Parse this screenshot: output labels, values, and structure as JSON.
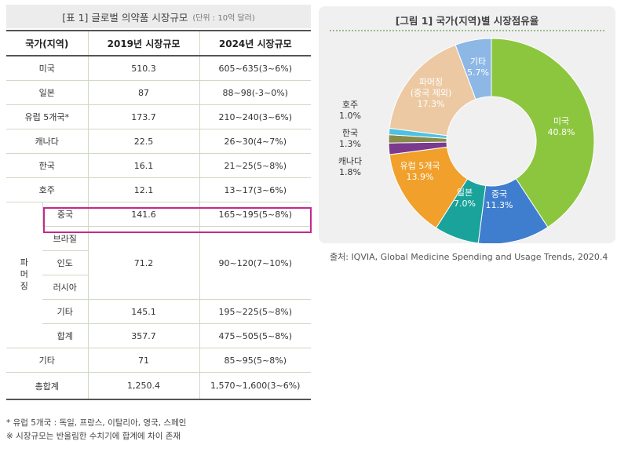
{
  "table": {
    "title": "[표 1] 글로벌 의약품 시장규모",
    "unit": "(단위 : 10억 달러)",
    "headers": [
      "국가(지역)",
      "2019년 시장규모",
      "2024년 시장규모"
    ],
    "rows": [
      {
        "name": "미국",
        "v2019": "510.3",
        "v2024": "605~635(3~6%)"
      },
      {
        "name": "일본",
        "v2019": "87",
        "v2024": "88~98(-3~0%)"
      },
      {
        "name": "유럽 5개국*",
        "v2019": "173.7",
        "v2024": "210~240(3~6%)"
      },
      {
        "name": "캐나다",
        "v2019": "22.5",
        "v2024": "26~30(4~7%)"
      },
      {
        "name": "한국",
        "v2019": "16.1",
        "v2024": "21~25(5~8%)"
      },
      {
        "name": "호주",
        "v2019": "12.1",
        "v2024": "13~17(3~6%)"
      }
    ],
    "pharmerging": {
      "label_chars": [
        "파",
        "머",
        "징"
      ],
      "china": {
        "name": "중국",
        "v2019": "141.6",
        "v2024": "165~195(5~8%)"
      },
      "group_names": [
        "브라질",
        "인도",
        "러시아"
      ],
      "group_v2019": "71.2",
      "group_v2024": "90~120(7~10%)",
      "other": {
        "name": "기타",
        "v2019": "145.1",
        "v2024": "195~225(5~8%)"
      },
      "subtotal": {
        "name": "합계",
        "v2019": "357.7",
        "v2024": "475~505(5~8%)"
      }
    },
    "others": {
      "name": "기타",
      "v2019": "71",
      "v2024": "85~95(5~8%)"
    },
    "total": {
      "name": "총합계",
      "v2019": "1,250.4",
      "v2024": "1,570~1,600(3~6%)"
    },
    "notes": [
      "* 유럽 5개국 : 독일, 프랑스, 이탈리아, 영국, 스페인",
      "※ 시장규모는 반올림한 수치기에 합계에 차이 존재"
    ]
  },
  "figure": {
    "title": "[그림 1] 국가(지역)별 시장점유율",
    "source": "출처: IQVIA, Global Medicine Spending and Usage Trends, 2020.4"
  },
  "chart_data": {
    "type": "pie",
    "subtype": "donut",
    "title": "[그림 1] 국가(지역)별 시장점유율",
    "slices": [
      {
        "label": "미국",
        "value": 40.8,
        "display": "40.8%",
        "color": "#8cc63f"
      },
      {
        "label": "중국",
        "value": 11.3,
        "display": "11.3%",
        "color": "#3f7ecf"
      },
      {
        "label": "일본",
        "value": 7.0,
        "display": "7.0%",
        "color": "#1aa39a"
      },
      {
        "label": "유럽 5개국",
        "value": 13.9,
        "display": "13.9%",
        "color": "#f0a02b"
      },
      {
        "label": "캐나다",
        "value": 1.8,
        "display": "1.8%",
        "color": "#7a3a8e"
      },
      {
        "label": "한국",
        "value": 1.3,
        "display": "1.3%",
        "color": "#8a8a4a"
      },
      {
        "label": "호주",
        "value": 1.0,
        "display": "1.0%",
        "color": "#4fc1e0"
      },
      {
        "label": "파머징\n(중국 제외)",
        "value": 17.3,
        "display": "17.3%",
        "color": "#ecc9a3"
      },
      {
        "label": "기타",
        "value": 5.7,
        "display": "5.7%",
        "color": "#8db8e6"
      }
    ]
  }
}
